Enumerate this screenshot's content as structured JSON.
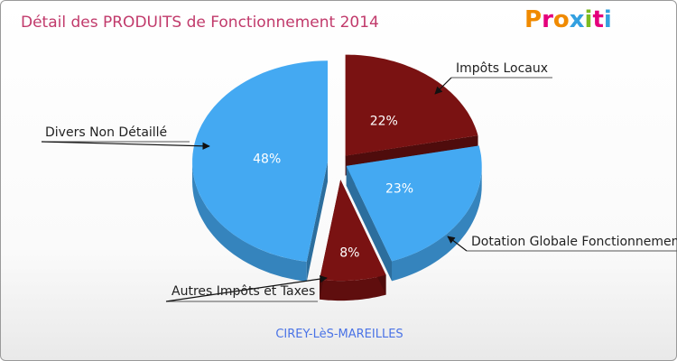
{
  "title": "Détail des PRODUITS de Fonctionnement 2014",
  "logo": {
    "text": "Proxiti",
    "colors": [
      "#f08a00",
      "#e4007c",
      "#f08a00",
      "#33a0e0",
      "#7dbb20",
      "#e4007c",
      "#33a0e0"
    ]
  },
  "subtitle": "CIREY-LèS-MAREILLES",
  "chart_data": {
    "type": "pie",
    "title": "Détail des PRODUITS de Fonctionnement 2014",
    "slices": [
      {
        "label": "Impôts Locaux",
        "percent": 22,
        "display": "22%",
        "color": "#7a1212"
      },
      {
        "label": "Dotation Globale Fonctionnement",
        "percent": 23,
        "display": "23%",
        "color": "#44a9f2"
      },
      {
        "label": "Autres Impôts et Taxes",
        "percent": 8,
        "display": "8%",
        "color": "#7a1212"
      },
      {
        "label": "Divers Non Détaillé",
        "percent": 48,
        "display": "48%",
        "color": "#44a9f2"
      }
    ],
    "style": "3d-exploded"
  }
}
